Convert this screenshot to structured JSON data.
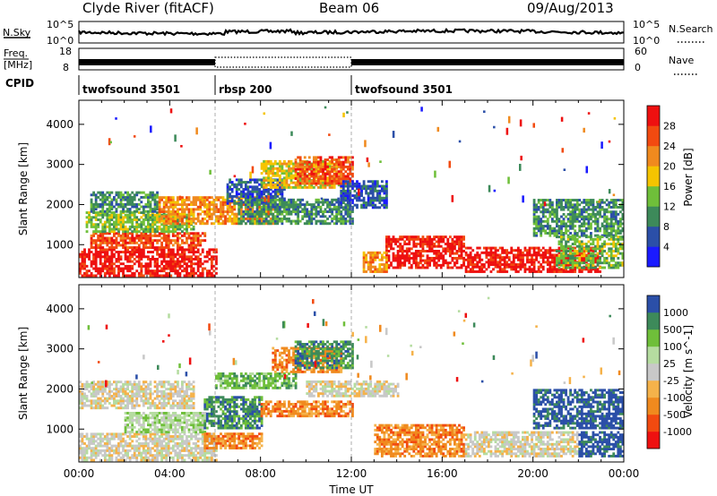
{
  "header": {
    "station": "Clyde River (fitACF)",
    "beam": "Beam 06",
    "date": "09/Aug/2013"
  },
  "strip_labels": {
    "nsky": "N.Sky",
    "nsearch": "N.Search",
    "freq_top": "Freq.",
    "freq_unit": "[MHz]",
    "nave": "Nave",
    "cpid": "CPID",
    "nsky_ticks": [
      "10^5",
      "10^0"
    ],
    "nsearch_ticks": [
      "10^5",
      "10^0"
    ],
    "freq_ticks": [
      "18",
      "8"
    ],
    "nave_ticks": [
      "60",
      "0"
    ]
  },
  "cpid_segments": [
    {
      "label": "twofsound 3501",
      "start_hour": 0
    },
    {
      "label": "rbsp 200",
      "start_hour": 6
    },
    {
      "label": "twofsound 3501",
      "start_hour": 12
    }
  ],
  "colors": {
    "power": [
      "#1a1aff",
      "#2b4fa8",
      "#3d8a5a",
      "#6fbf3a",
      "#f5c400",
      "#f08a1e",
      "#f24a10",
      "#ee1010"
    ],
    "velocity": [
      "#ee1010",
      "#f24a10",
      "#f08a1e",
      "#f5b24a",
      "#c8c8c8",
      "#b5dca0",
      "#6fbf3a",
      "#3d8a5a",
      "#2b4fa8"
    ],
    "ground_grey": "#c4c4c4"
  },
  "chart_data": [
    {
      "type": "heatmap",
      "panel": "power",
      "ylabel": "Slant Range [km]",
      "colorbar_label": "Power [dB]",
      "colorbar_ticks": [
        "28",
        "24",
        "20",
        "16",
        "12",
        "8",
        "4"
      ],
      "ylim": [
        180,
        4600
      ],
      "yticks": [
        1000,
        2000,
        3000,
        4000
      ],
      "xlim": [
        0,
        24
      ],
      "regions": [
        {
          "t0": 0.0,
          "t1": 6.0,
          "r0": 200,
          "r1": 900,
          "level": 7
        },
        {
          "t0": 0.5,
          "t1": 5.5,
          "r0": 900,
          "r1": 1300,
          "level": 6
        },
        {
          "t0": 0.3,
          "t1": 5.0,
          "r0": 1300,
          "r1": 1800,
          "level": 3
        },
        {
          "t0": 0.5,
          "t1": 3.5,
          "r0": 1800,
          "r1": 2300,
          "level": 2
        },
        {
          "t0": 3.5,
          "t1": 8.5,
          "r0": 1500,
          "r1": 2200,
          "level": 5
        },
        {
          "t0": 6.5,
          "t1": 9.0,
          "r0": 2000,
          "r1": 2600,
          "level": 1
        },
        {
          "t0": 7.0,
          "t1": 12.0,
          "r0": 1500,
          "r1": 2100,
          "level": 2
        },
        {
          "t0": 8.0,
          "t1": 11.5,
          "r0": 2400,
          "r1": 3100,
          "level": 4
        },
        {
          "t0": 9.5,
          "t1": 12.0,
          "r0": 2500,
          "r1": 3200,
          "level": 6
        },
        {
          "t0": 11.5,
          "t1": 13.5,
          "r0": 1900,
          "r1": 2600,
          "level": 1
        },
        {
          "t0": 13.5,
          "t1": 17.0,
          "r0": 400,
          "r1": 1200,
          "level": 7
        },
        {
          "t0": 12.5,
          "t1": 13.5,
          "r0": 300,
          "r1": 800,
          "level": 5
        },
        {
          "t0": 17.0,
          "t1": 23.0,
          "r0": 300,
          "r1": 900,
          "level": 7
        },
        {
          "t0": 20.0,
          "t1": 24.0,
          "r0": 1200,
          "r1": 2100,
          "level": 2
        },
        {
          "t0": 21.0,
          "t1": 24.0,
          "r0": 400,
          "r1": 1200,
          "level": 3
        }
      ]
    },
    {
      "type": "heatmap",
      "panel": "velocity",
      "ylabel": "Slant Range [km]",
      "xlabel": "Time UT",
      "colorbar_label": "Velocity [m s^-1]",
      "colorbar_ticks": [
        "1000",
        "500",
        "100",
        "25",
        "-25",
        "-100",
        "-500",
        "-1000"
      ],
      "ylim": [
        180,
        4600
      ],
      "yticks": [
        1000,
        2000,
        3000,
        4000
      ],
      "xlim": [
        0,
        24
      ],
      "xticks": [
        "00:00",
        "04:00",
        "08:00",
        "12:00",
        "16:00",
        "20:00",
        "00:00"
      ],
      "regions": [
        {
          "t0": 0.0,
          "t1": 6.0,
          "r0": 200,
          "r1": 900,
          "level": 4
        },
        {
          "t0": 0.0,
          "t1": 5.0,
          "r0": 1500,
          "r1": 2200,
          "level": 4
        },
        {
          "t0": 2.0,
          "t1": 5.5,
          "r0": 900,
          "r1": 1400,
          "level": 5
        },
        {
          "t0": 5.5,
          "t1": 8.0,
          "r0": 1000,
          "r1": 1800,
          "level": 7
        },
        {
          "t0": 5.5,
          "t1": 8.0,
          "r0": 500,
          "r1": 900,
          "level": 2
        },
        {
          "t0": 6.0,
          "t1": 9.5,
          "r0": 2000,
          "r1": 2400,
          "level": 6
        },
        {
          "t0": 8.0,
          "t1": 12.0,
          "r0": 1300,
          "r1": 1700,
          "level": 2
        },
        {
          "t0": 8.5,
          "t1": 11.5,
          "r0": 2400,
          "r1": 3000,
          "level": 2
        },
        {
          "t0": 9.5,
          "t1": 12.0,
          "r0": 2500,
          "r1": 3200,
          "level": 7
        },
        {
          "t0": 10.0,
          "t1": 14.0,
          "r0": 1800,
          "r1": 2200,
          "level": 4
        },
        {
          "t0": 13.0,
          "t1": 17.0,
          "r0": 300,
          "r1": 1100,
          "level": 2
        },
        {
          "t0": 17.0,
          "t1": 22.0,
          "r0": 300,
          "r1": 900,
          "level": 4
        },
        {
          "t0": 20.0,
          "t1": 24.0,
          "r0": 1000,
          "r1": 2000,
          "level": 8
        },
        {
          "t0": 22.0,
          "t1": 24.0,
          "r0": 300,
          "r1": 900,
          "level": 8
        }
      ]
    }
  ]
}
